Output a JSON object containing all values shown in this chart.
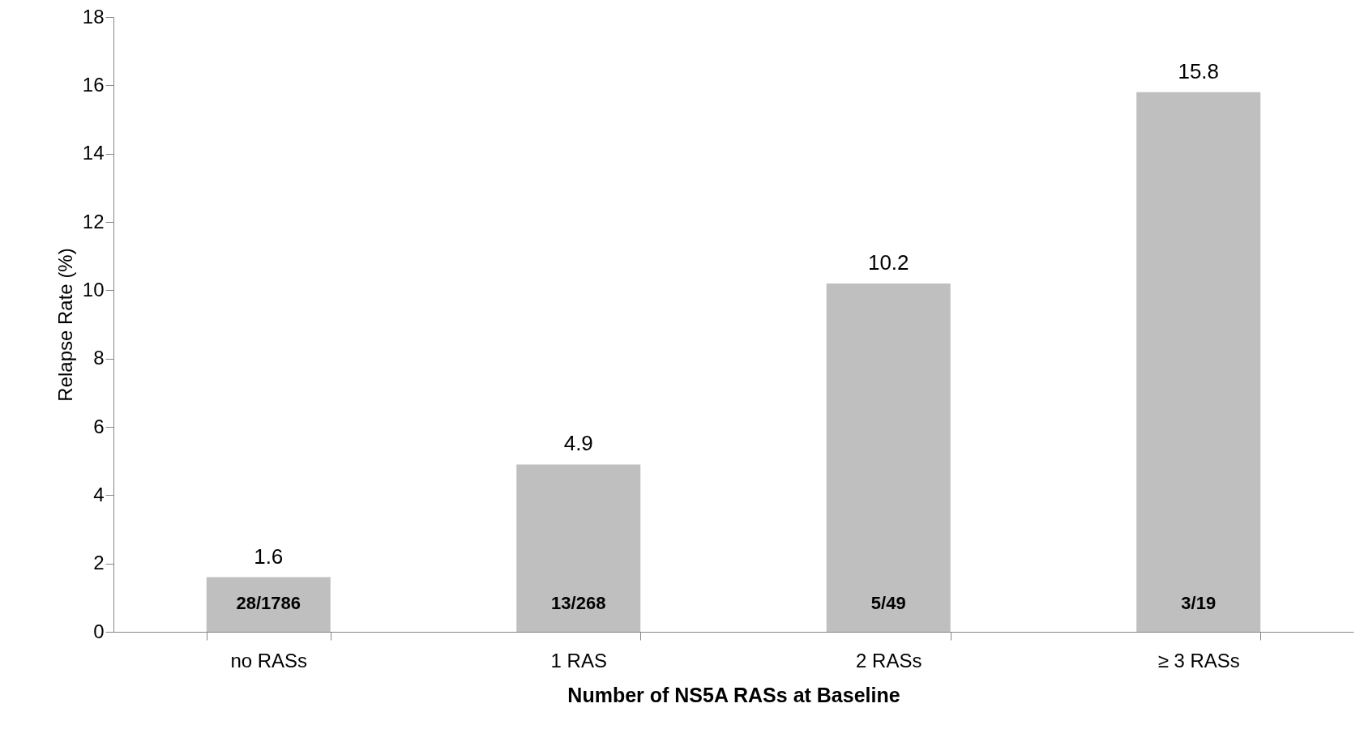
{
  "chart_data": {
    "type": "bar",
    "xlabel": "Number of NS5A RASs at Baseline",
    "ylabel": "Relapse Rate (%)",
    "categories": [
      "no RASs",
      "1 RAS",
      "2 RASs",
      "≥ 3 RASs"
    ],
    "values": [
      1.6,
      4.9,
      10.2,
      15.8
    ],
    "color": "#bfbfbf",
    "data_labels": true,
    "ylim": [
      0,
      18
    ],
    "yticks": [
      0,
      2,
      4,
      6,
      8,
      10,
      12,
      14,
      16,
      18
    ],
    "grid": false,
    "annotations": [
      "28/1786",
      "13/268",
      "5/49",
      "3/19"
    ]
  }
}
